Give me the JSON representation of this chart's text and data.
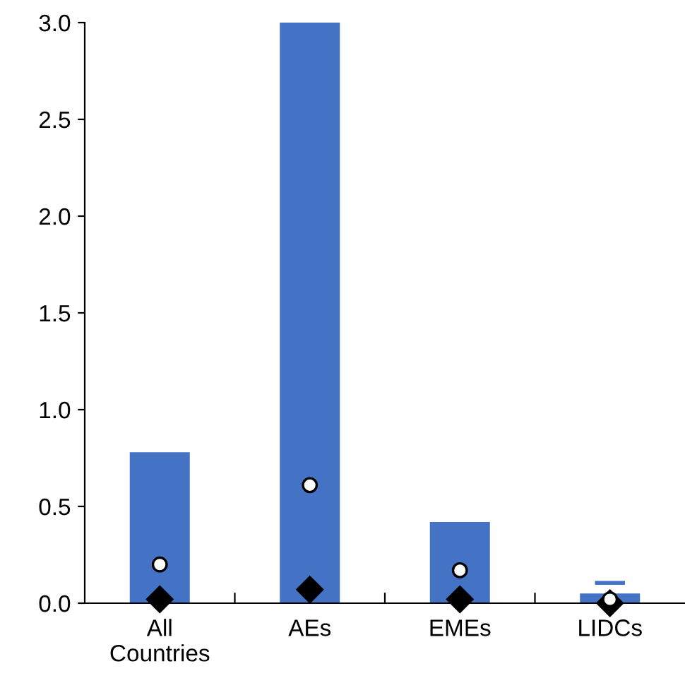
{
  "chart_data": {
    "type": "bar",
    "categories": [
      "All\nCountries",
      "AEs",
      "EMEs",
      "LIDCs"
    ],
    "series": [
      {
        "color": "#4472c4",
        "values": [
          0.78,
          3.0,
          0.42,
          0.05
        ]
      },
      {
        "color": "#4472c4",
        "base": [
          null,
          null,
          null,
          0.095
        ],
        "values": [
          null,
          null,
          null,
          0.02
        ]
      },
      {
        "type": "scatter",
        "color": "#ffffff",
        "marker": "circle",
        "values": [
          0.2,
          0.61,
          0.17,
          0.02
        ]
      },
      {
        "type": "scatter",
        "color": "#000000",
        "marker": "diamond",
        "values": [
          0.02,
          0.07,
          0.02,
          0.0
        ]
      }
    ],
    "ylim": [
      0,
      3.0
    ],
    "yticks": [
      {
        "value": 0,
        "label": "0.0"
      },
      {
        "value": 0.5,
        "label": "0.5"
      },
      {
        "value": 1.0,
        "label": "1.0"
      },
      {
        "value": 1.5,
        "label": "1.5"
      },
      {
        "value": 2.0,
        "label": "2.0"
      },
      {
        "value": 2.5,
        "label": "2.5"
      },
      {
        "value": 3.0,
        "label": "3.0"
      }
    ],
    "grid": false,
    "legend": false
  }
}
